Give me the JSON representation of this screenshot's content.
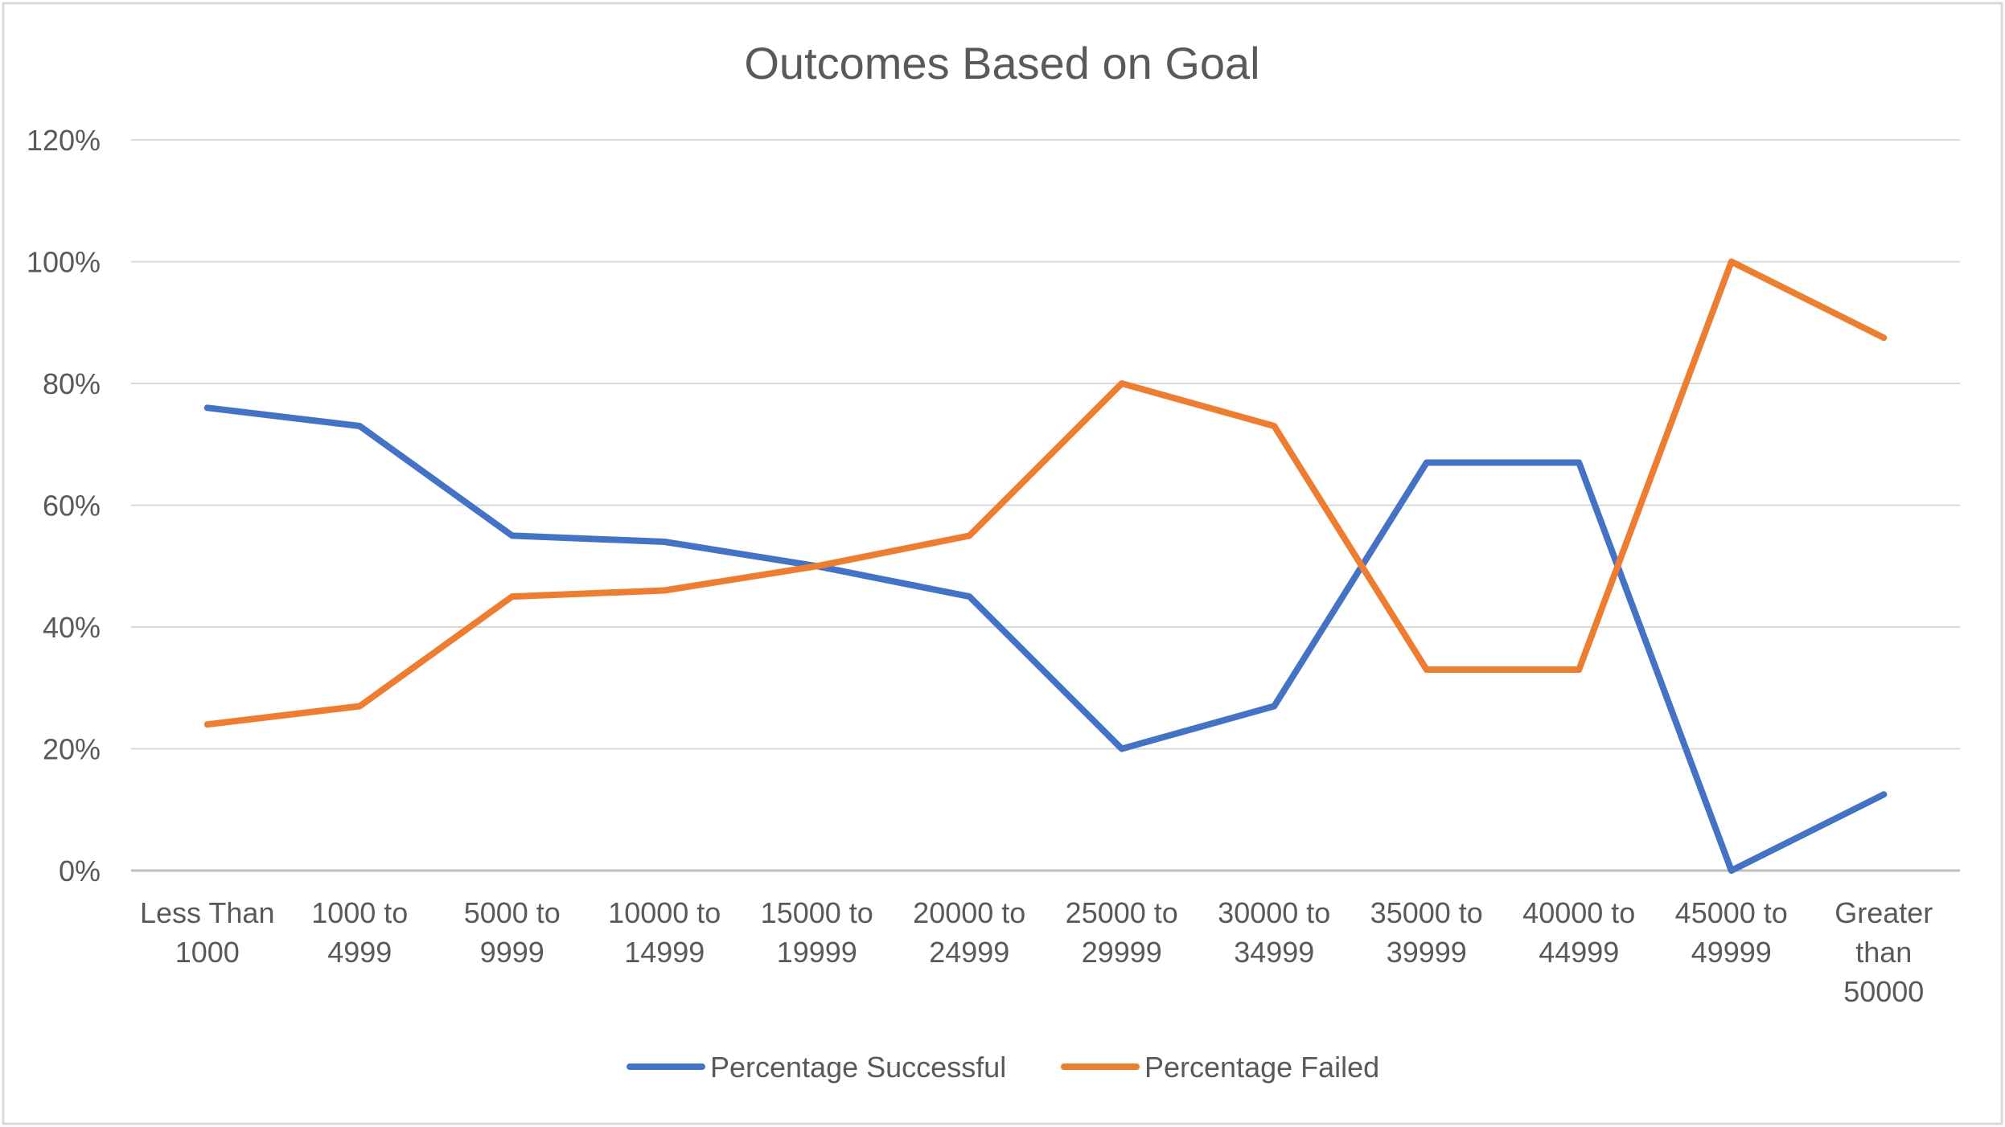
{
  "chart_data": {
    "type": "line",
    "title": "Outcomes Based on Goal",
    "xlabel": "",
    "ylabel": "",
    "categories": [
      [
        "Less Than",
        "1000"
      ],
      [
        "1000 to",
        "4999"
      ],
      [
        "5000 to",
        "9999"
      ],
      [
        "10000 to",
        "14999"
      ],
      [
        "15000 to",
        "19999"
      ],
      [
        "20000 to",
        "24999"
      ],
      [
        "25000 to",
        "29999"
      ],
      [
        "30000 to",
        "34999"
      ],
      [
        "35000 to",
        "39999"
      ],
      [
        "40000 to",
        "44999"
      ],
      [
        "45000 to",
        "49999"
      ],
      [
        "Greater",
        "than",
        "50000"
      ]
    ],
    "series": [
      {
        "name": "Percentage Successful",
        "color": "#4472C4",
        "values": [
          76,
          73,
          55,
          54,
          50,
          45,
          20,
          27,
          67,
          67,
          0,
          12.5
        ]
      },
      {
        "name": "Percentage Failed",
        "color": "#ED7D31",
        "values": [
          24,
          27,
          45,
          46,
          50,
          55,
          80,
          73,
          33,
          33,
          100,
          87.5
        ]
      }
    ],
    "ylim": [
      0,
      120
    ],
    "yticks": [
      0,
      20,
      40,
      60,
      80,
      100,
      120
    ],
    "ytick_labels": [
      "0%",
      "20%",
      "40%",
      "60%",
      "80%",
      "100%",
      "120%"
    ],
    "grid": true,
    "legend_position": "bottom",
    "colors": {
      "gridline": "#D9D9D9",
      "axis": "#BFBFBF",
      "border": "#D9D9D9",
      "text": "#595959"
    }
  }
}
